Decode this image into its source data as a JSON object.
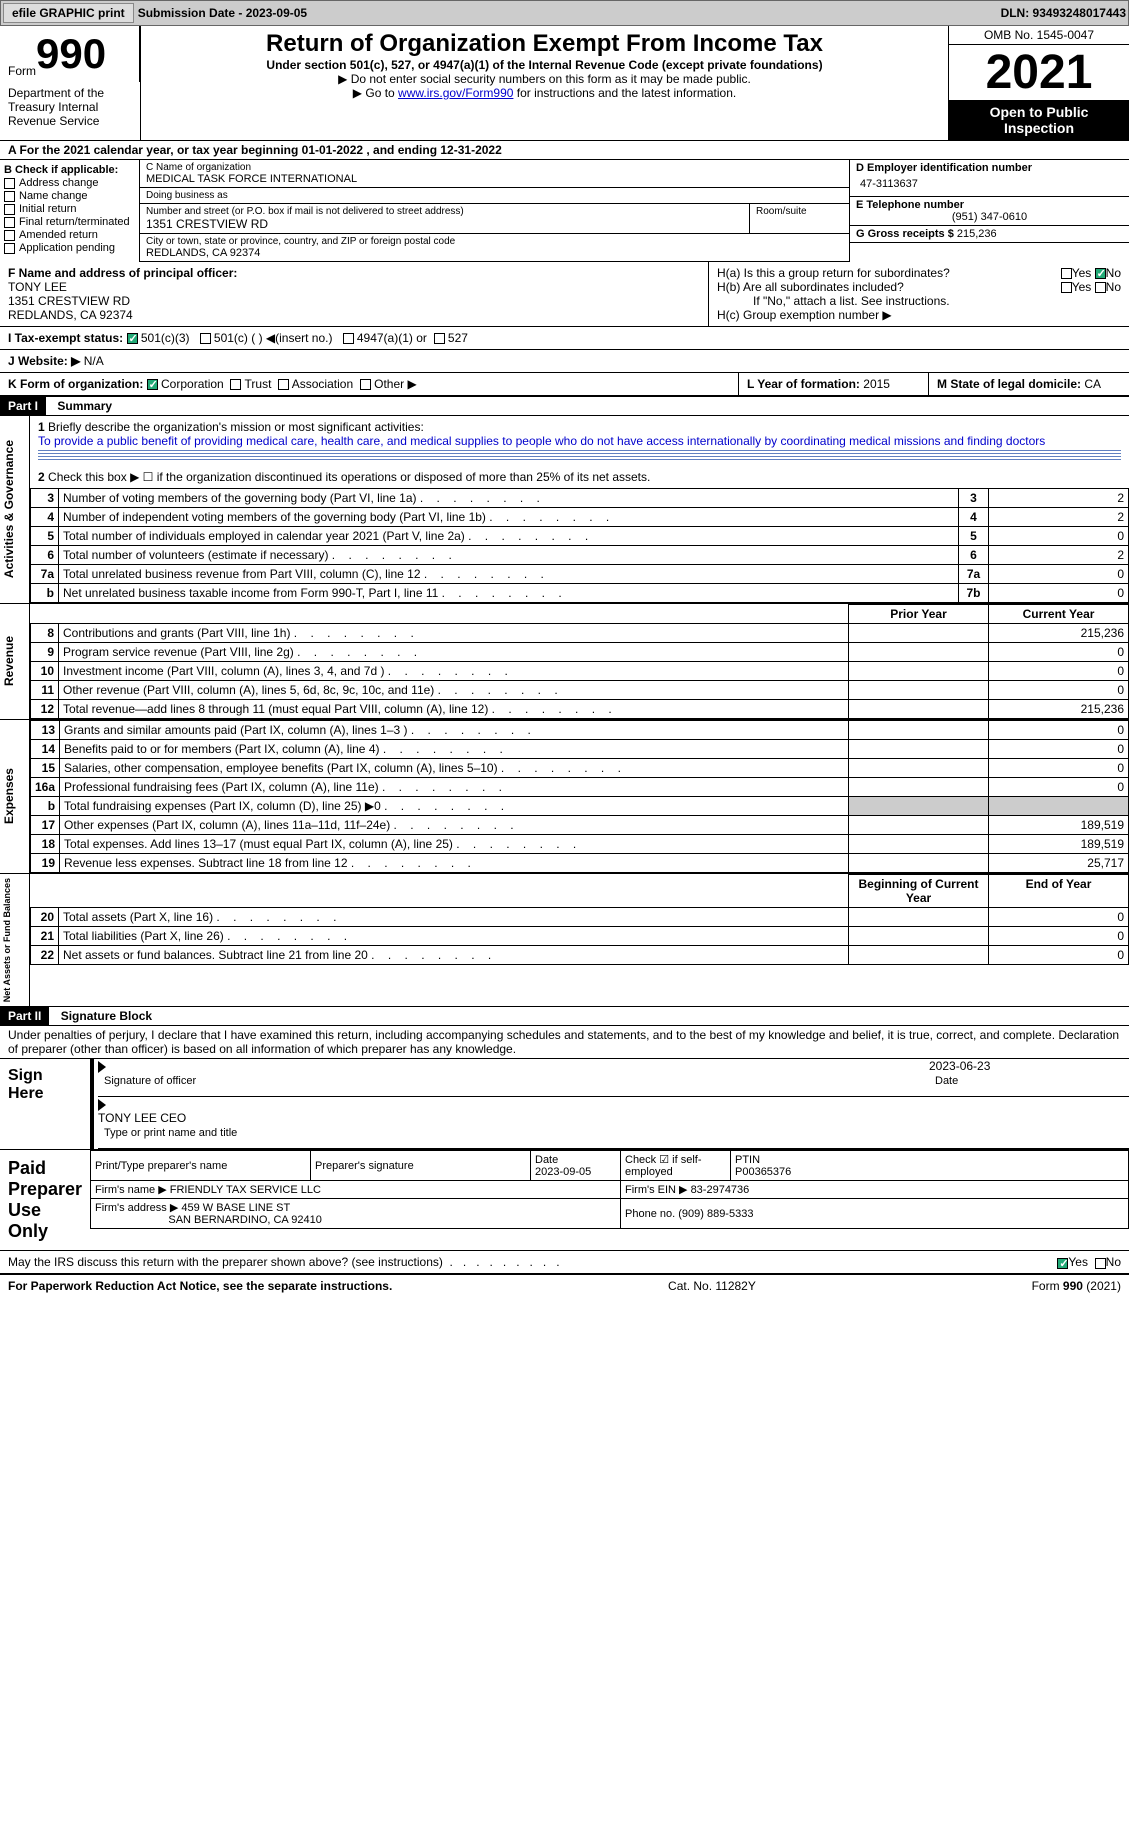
{
  "toolbar": {
    "efile": "efile GRAPHIC print",
    "submission": "Submission Date - 2023-09-05",
    "dln": "DLN: 93493248017443"
  },
  "header": {
    "form_label": "Form",
    "form_number": "990",
    "dept": "Department of the Treasury Internal Revenue Service",
    "title": "Return of Organization Exempt From Income Tax",
    "subtitle": "Under section 501(c), 527, or 4947(a)(1) of the Internal Revenue Code (except private foundations)",
    "note1": "▶ Do not enter social security numbers on this form as it may be made public.",
    "note2_pre": "▶ Go to ",
    "note2_link": "www.irs.gov/Form990",
    "note2_post": " for instructions and the latest information.",
    "omb": "OMB No. 1545-0047",
    "year": "2021",
    "inspection": "Open to Public Inspection"
  },
  "line_a": "A For the 2021 calendar year, or tax year beginning 01-01-2022    , and ending 12-31-2022",
  "section_b": {
    "header": "B Check if applicable:",
    "items": [
      "Address change",
      "Name change",
      "Initial return",
      "Final return/terminated",
      "Amended return",
      "Application pending"
    ]
  },
  "section_c": {
    "name_label": "C Name of organization",
    "name": "MEDICAL TASK FORCE INTERNATIONAL",
    "dba_label": "Doing business as",
    "dba": "",
    "street_label": "Number and street (or P.O. box if mail is not delivered to street address)",
    "street": "1351 CRESTVIEW RD",
    "room_label": "Room/suite",
    "city_label": "City or town, state or province, country, and ZIP or foreign postal code",
    "city": "REDLANDS, CA  92374"
  },
  "section_d": {
    "label": "D Employer identification number",
    "value": "47-3113637"
  },
  "section_e": {
    "label": "E Telephone number",
    "value": "(951) 347-0610"
  },
  "section_g": {
    "label": "G Gross receipts $",
    "value": "215,236"
  },
  "section_f": {
    "label": "F Name and address of principal officer:",
    "name": "TONY LEE",
    "street": "1351 CRESTVIEW RD",
    "city": "REDLANDS, CA  92374"
  },
  "section_h": {
    "a": "H(a)  Is this a group return for subordinates?",
    "b": "H(b)  Are all subordinates included?",
    "b_note": "If \"No,\" attach a list. See instructions.",
    "c": "H(c)  Group exemption number ▶",
    "yes": "Yes",
    "no": "No"
  },
  "section_i": {
    "label": "I    Tax-exempt status:",
    "opts": [
      "501(c)(3)",
      "501(c) (  ) ◀(insert no.)",
      "4947(a)(1) or",
      "527"
    ]
  },
  "section_j": {
    "label": "J   Website: ▶",
    "value": "N/A"
  },
  "section_k": {
    "label": "K Form of organization:",
    "opts": [
      "Corporation",
      "Trust",
      "Association",
      "Other ▶"
    ]
  },
  "section_l": {
    "label": "L Year of formation:",
    "value": "2015"
  },
  "section_m": {
    "label": "M State of legal domicile:",
    "value": "CA"
  },
  "part1": {
    "header": "Part I",
    "title": "Summary",
    "q1_label": "1",
    "q1": "Briefly describe the organization's mission or most significant activities:",
    "q1_text": "To provide a public benefit of providing medical care, health care, and medical supplies to people who do not have access internationally by coordinating medical missions and finding doctors",
    "q2_label": "2",
    "q2": "Check this box ▶ ☐ if the organization discontinued its operations or disposed of more than 25% of its net assets.",
    "vert1": "Activities & Governance",
    "vert2": "Revenue",
    "vert3": "Expenses",
    "vert4": "Net Assets or Fund Balances",
    "rows_ag": [
      {
        "n": "3",
        "d": "Number of voting members of the governing body (Part VI, line 1a)",
        "box": "3",
        "v": "2"
      },
      {
        "n": "4",
        "d": "Number of independent voting members of the governing body (Part VI, line 1b)",
        "box": "4",
        "v": "2"
      },
      {
        "n": "5",
        "d": "Total number of individuals employed in calendar year 2021 (Part V, line 2a)",
        "box": "5",
        "v": "0"
      },
      {
        "n": "6",
        "d": "Total number of volunteers (estimate if necessary)",
        "box": "6",
        "v": "2"
      },
      {
        "n": "7a",
        "d": "Total unrelated business revenue from Part VIII, column (C), line 12",
        "box": "7a",
        "v": "0"
      },
      {
        "n": "b",
        "d": "Net unrelated business taxable income from Form 990-T, Part I, line 11",
        "box": "7b",
        "v": "0"
      }
    ],
    "col_headers": {
      "prior": "Prior Year",
      "current": "Current Year"
    },
    "rows_rev": [
      {
        "n": "8",
        "d": "Contributions and grants (Part VIII, line 1h)",
        "p": "",
        "c": "215,236"
      },
      {
        "n": "9",
        "d": "Program service revenue (Part VIII, line 2g)",
        "p": "",
        "c": "0"
      },
      {
        "n": "10",
        "d": "Investment income (Part VIII, column (A), lines 3, 4, and 7d )",
        "p": "",
        "c": "0"
      },
      {
        "n": "11",
        "d": "Other revenue (Part VIII, column (A), lines 5, 6d, 8c, 9c, 10c, and 11e)",
        "p": "",
        "c": "0"
      },
      {
        "n": "12",
        "d": "Total revenue—add lines 8 through 11 (must equal Part VIII, column (A), line 12)",
        "p": "",
        "c": "215,236"
      }
    ],
    "rows_exp": [
      {
        "n": "13",
        "d": "Grants and similar amounts paid (Part IX, column (A), lines 1–3 )",
        "p": "",
        "c": "0"
      },
      {
        "n": "14",
        "d": "Benefits paid to or for members (Part IX, column (A), line 4)",
        "p": "",
        "c": "0"
      },
      {
        "n": "15",
        "d": "Salaries, other compensation, employee benefits (Part IX, column (A), lines 5–10)",
        "p": "",
        "c": "0"
      },
      {
        "n": "16a",
        "d": "Professional fundraising fees (Part IX, column (A), line 11e)",
        "p": "",
        "c": "0"
      },
      {
        "n": "b",
        "d": "Total fundraising expenses (Part IX, column (D), line 25) ▶0",
        "p": "grey",
        "c": "grey"
      },
      {
        "n": "17",
        "d": "Other expenses (Part IX, column (A), lines 11a–11d, 11f–24e)",
        "p": "",
        "c": "189,519"
      },
      {
        "n": "18",
        "d": "Total expenses. Add lines 13–17 (must equal Part IX, column (A), line 25)",
        "p": "",
        "c": "189,519"
      },
      {
        "n": "19",
        "d": "Revenue less expenses. Subtract line 18 from line 12",
        "p": "",
        "c": "25,717"
      }
    ],
    "col_headers2": {
      "begin": "Beginning of Current Year",
      "end": "End of Year"
    },
    "rows_net": [
      {
        "n": "20",
        "d": "Total assets (Part X, line 16)",
        "p": "",
        "c": "0"
      },
      {
        "n": "21",
        "d": "Total liabilities (Part X, line 26)",
        "p": "",
        "c": "0"
      },
      {
        "n": "22",
        "d": "Net assets or fund balances. Subtract line 21 from line 20",
        "p": "",
        "c": "0"
      }
    ]
  },
  "part2": {
    "header": "Part II",
    "title": "Signature Block",
    "jurat": "Under penalties of perjury, I declare that I have examined this return, including accompanying schedules and statements, and to the best of my knowledge and belief, it is true, correct, and complete. Declaration of preparer (other than officer) is based on all information of which preparer has any knowledge."
  },
  "sign": {
    "label": "Sign Here",
    "sig_label": "Signature of officer",
    "date": "2023-06-23",
    "date_label": "Date",
    "name": "TONY LEE CEO",
    "name_label": "Type or print name and title"
  },
  "preparer": {
    "label": "Paid Preparer Use Only",
    "print_label": "Print/Type preparer's name",
    "sig_label": "Preparer's signature",
    "date_label": "Date",
    "date": "2023-09-05",
    "check_label": "Check ☑ if self-employed",
    "ptin_label": "PTIN",
    "ptin": "P00365376",
    "firm_name_label": "Firm's name    ▶",
    "firm_name": "FRIENDLY TAX SERVICE LLC",
    "firm_ein_label": "Firm's EIN ▶",
    "firm_ein": "83-2974736",
    "firm_addr_label": "Firm's address ▶",
    "firm_addr": "459 W BASE LINE ST",
    "firm_city": "SAN BERNARDINO, CA  92410",
    "phone_label": "Phone no.",
    "phone": "(909) 889-5333"
  },
  "discuss": {
    "text": "May the IRS discuss this return with the preparer shown above? (see instructions)",
    "yes": "Yes",
    "no": "No"
  },
  "footer": {
    "left": "For Paperwork Reduction Act Notice, see the separate instructions.",
    "mid": "Cat. No. 11282Y",
    "right": "Form 990 (2021)"
  }
}
